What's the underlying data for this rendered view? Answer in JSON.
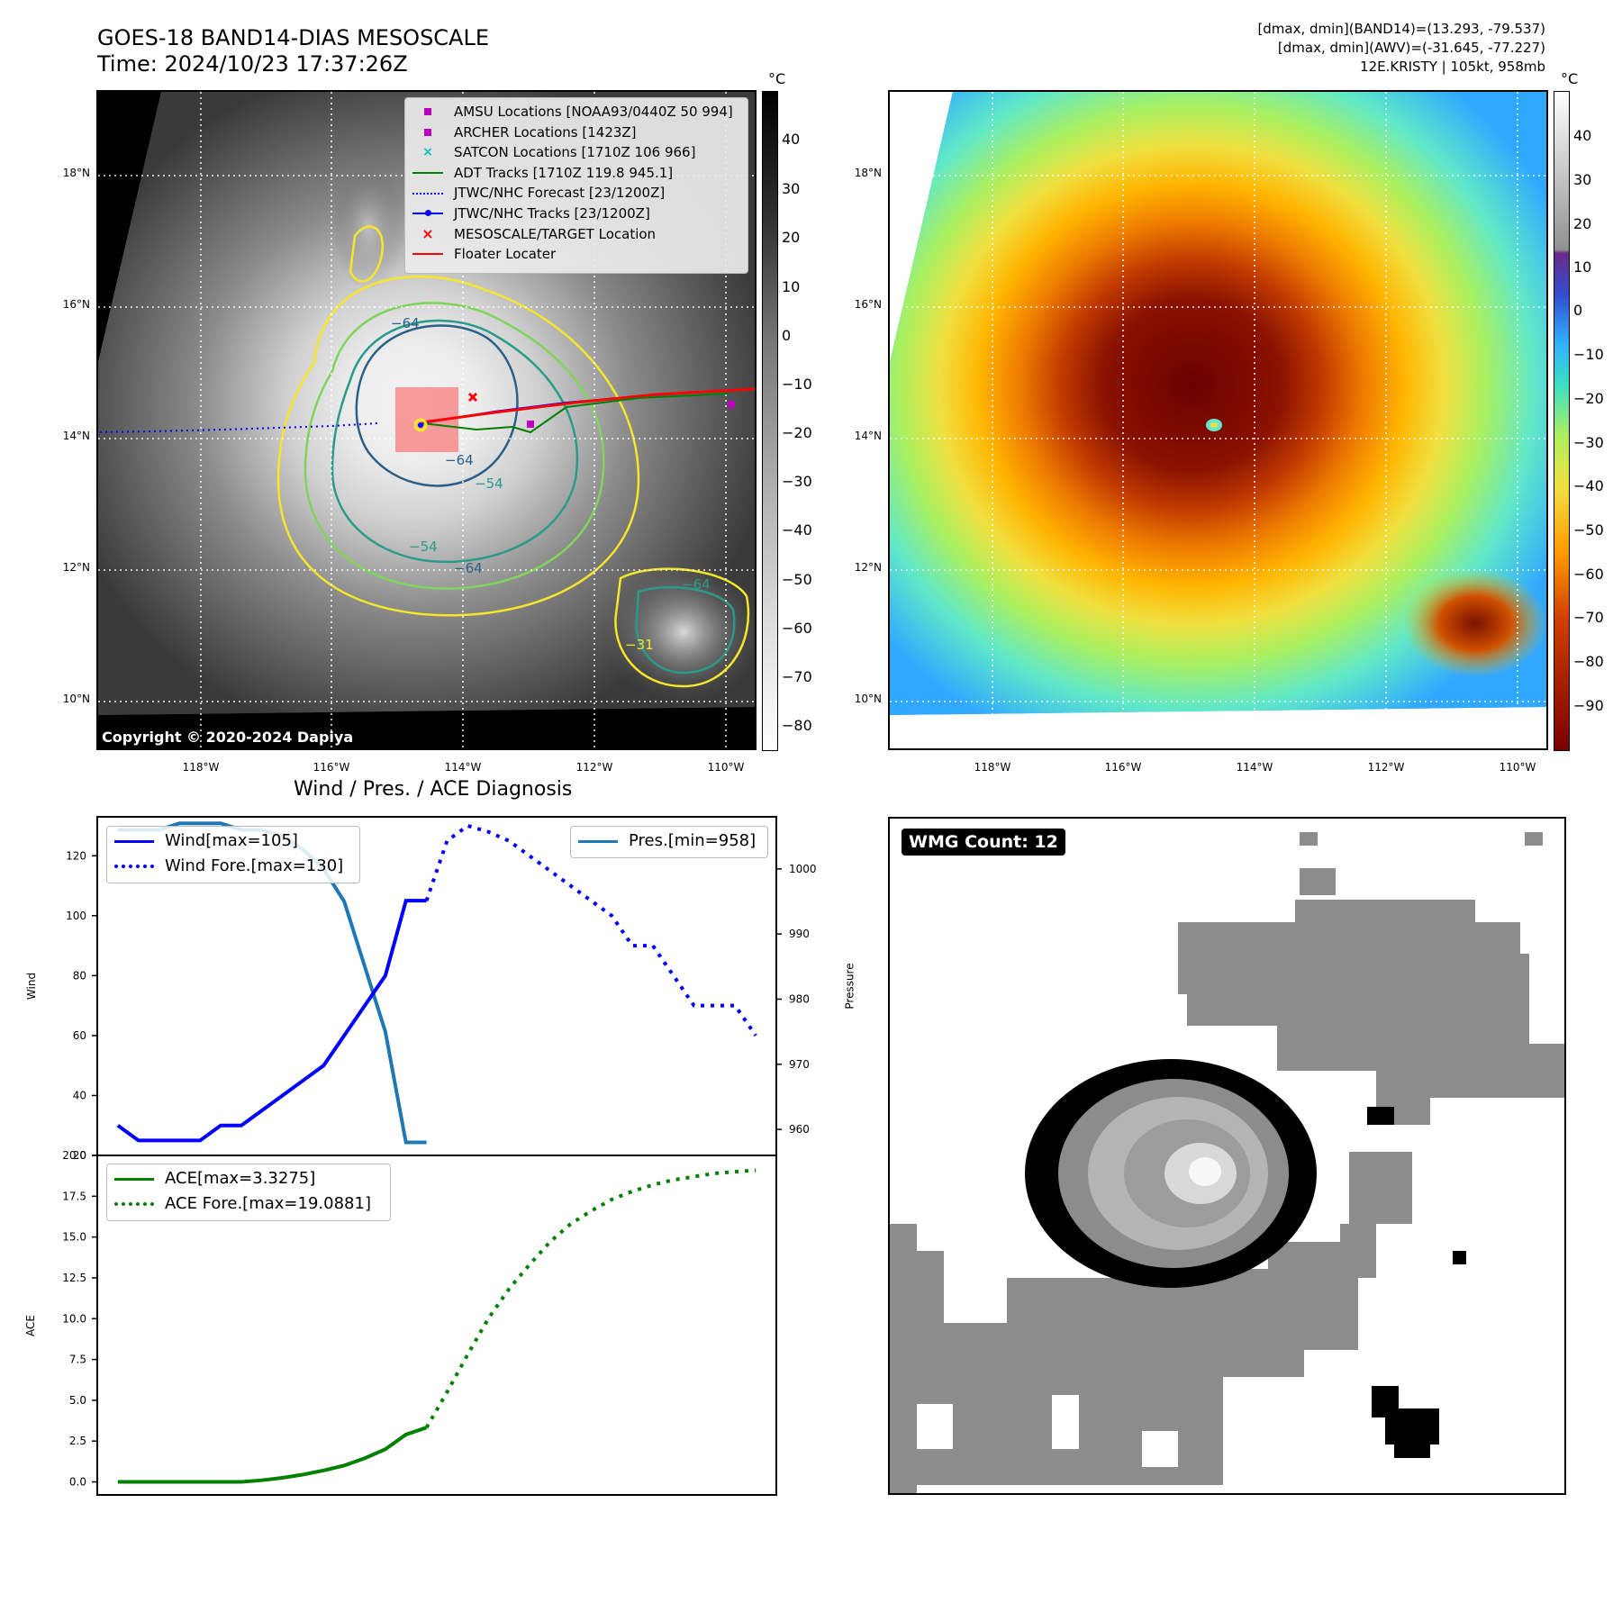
{
  "header": {
    "title_line1": "GOES-18 BAND14-DIAS MESOSCALE",
    "title_line2": "Time: 2024/10/23 17:37:26Z",
    "info_line1": "[dmax, dmin](BAND14)=(13.293, -79.537)",
    "info_line2": "[dmax, dmin](AWV)=(-31.645, -77.227)",
    "info_line3": "12E.KRISTY | 105kt, 958mb"
  },
  "map_axes": {
    "lat_labels": [
      "18°N",
      "16°N",
      "14°N",
      "12°N",
      "10°N"
    ],
    "lon_labels": [
      "118°W",
      "116°W",
      "114°W",
      "112°W",
      "110°W"
    ]
  },
  "ir_panel": {
    "colorbar_unit": "°C",
    "colorbar_ticks": [
      "40",
      "30",
      "20",
      "10",
      "0",
      "−10",
      "−20",
      "−30",
      "−40",
      "−50",
      "−60",
      "−70",
      "−80"
    ],
    "copyright": "Copyright © 2020-2024 Dapiya",
    "legend": [
      {
        "label": "AMSU Locations [NOAA93/0440Z 50 994]",
        "symbol": "square",
        "color": "#c000c0"
      },
      {
        "label": "ARCHER Locations [1423Z]",
        "symbol": "square",
        "color": "#c000c0"
      },
      {
        "label": "SATCON Locations [1710Z 106 966]",
        "symbol": "x",
        "color": "#00bfbf"
      },
      {
        "label": "ADT Tracks [1710Z 119.8 945.1]",
        "symbol": "line",
        "color": "#008000"
      },
      {
        "label": "JTWC/NHC Forecast [23/1200Z]",
        "symbol": "dotted",
        "color": "#0000ff"
      },
      {
        "label": "JTWC/NHC Tracks [23/1200Z]",
        "symbol": "line-dot",
        "color": "#0000ff"
      },
      {
        "label": "MESOSCALE/TARGET Location",
        "symbol": "x",
        "color": "#ff0000"
      },
      {
        "label": "Floater Locater",
        "symbol": "line",
        "color": "#ff0000"
      }
    ],
    "contour_labels": [
      "−64",
      "−64",
      "−54",
      "−54",
      "−64",
      "−64",
      "−31"
    ]
  },
  "awv_panel": {
    "colorbar_unit": "°C",
    "colorbar_ticks": [
      "40",
      "30",
      "20",
      "10",
      "0",
      "−10",
      "−20",
      "−30",
      "−40",
      "−50",
      "−60",
      "−70",
      "−80",
      "−90"
    ]
  },
  "diag_panel": {
    "title": "Wind / Pres. / ACE Diagnosis",
    "wind_legend": [
      "Wind[max=105]",
      "Wind Fore.[max=130]"
    ],
    "pres_legend": "Pres.[min=958]",
    "ace_legend": [
      "ACE[max=3.3275]",
      "ACE Fore.[max=19.0881]"
    ],
    "wind_ylabel": "Wind",
    "pres_ylabel": "Pressure",
    "ace_ylabel": "ACE",
    "wind_ticks": [
      "120",
      "100",
      "80",
      "60",
      "40",
      "20"
    ],
    "pres_ticks": [
      "1000",
      "990",
      "980",
      "970",
      "960"
    ],
    "ace_ticks": [
      "20.0",
      "17.5",
      "15.0",
      "12.5",
      "10.0",
      "7.5",
      "5.0",
      "2.5",
      "0.0"
    ]
  },
  "wmg_panel": {
    "badge": "WMG Count: 12"
  },
  "chart_data": [
    {
      "type": "line",
      "name": "wind",
      "ylim": [
        20,
        133
      ],
      "xlim": [
        0,
        33
      ],
      "series": [
        {
          "name": "Wind[max=105]",
          "color": "#0000ff",
          "style": "solid",
          "x": [
            1,
            2,
            3,
            4,
            5,
            6,
            7,
            8,
            9,
            10,
            11,
            12,
            13,
            14,
            15,
            16
          ],
          "values": [
            30,
            25,
            25,
            25,
            25,
            30,
            30,
            35,
            40,
            45,
            50,
            60,
            70,
            80,
            105,
            105
          ]
        },
        {
          "name": "Wind Fore.[max=130]",
          "color": "#0000ff",
          "style": "dotted",
          "x": [
            16,
            17,
            18,
            19,
            20,
            21,
            22,
            23,
            24,
            25,
            26,
            27,
            28,
            29,
            30,
            31,
            32
          ],
          "values": [
            105,
            125,
            130,
            128,
            125,
            120,
            115,
            110,
            105,
            100,
            90,
            90,
            80,
            70,
            70,
            70,
            60
          ]
        }
      ]
    },
    {
      "type": "line",
      "name": "pressure",
      "ylim": [
        956,
        1008
      ],
      "series": [
        {
          "name": "Pres.[min=958]",
          "color": "#1f77b4",
          "style": "solid",
          "x": [
            1,
            2,
            3,
            4,
            5,
            6,
            7,
            8,
            9,
            10,
            11,
            12,
            13,
            14,
            15,
            16
          ],
          "values": [
            1006,
            1006,
            1006,
            1007,
            1007,
            1007,
            1006,
            1006,
            1005,
            1003,
            1000,
            995,
            985,
            975,
            958,
            958
          ]
        }
      ]
    },
    {
      "type": "line",
      "name": "ace",
      "ylim": [
        -0.8,
        20
      ],
      "series": [
        {
          "name": "ACE[max=3.3275]",
          "color": "#008000",
          "style": "solid",
          "x": [
            1,
            2,
            3,
            4,
            5,
            6,
            7,
            8,
            9,
            10,
            11,
            12,
            13,
            14,
            15,
            16
          ],
          "values": [
            0,
            0,
            0,
            0,
            0,
            0,
            0,
            0.1,
            0.25,
            0.45,
            0.7,
            1.0,
            1.45,
            2.0,
            2.9,
            3.3275
          ]
        },
        {
          "name": "ACE Fore.[max=19.0881]",
          "color": "#008000",
          "style": "dotted",
          "x": [
            16,
            17,
            18,
            19,
            20,
            21,
            22,
            23,
            24,
            25,
            26,
            27,
            28,
            29,
            30,
            31,
            32
          ],
          "values": [
            3.3275,
            5.5,
            7.8,
            10.0,
            11.8,
            13.3,
            14.7,
            15.8,
            16.6,
            17.3,
            17.8,
            18.2,
            18.5,
            18.7,
            18.9,
            19.0,
            19.0881
          ]
        }
      ]
    }
  ]
}
